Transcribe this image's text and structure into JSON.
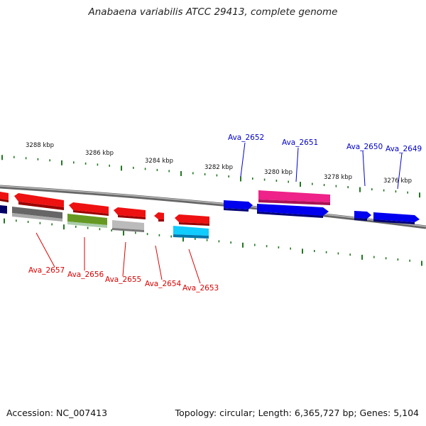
{
  "title": "Anabaena variabilis ATCC 29413, complete genome",
  "footer": {
    "accession": "Accession: NC_007413",
    "summary": "Topology: circular; Length: 6,365,727 bp; Genes: 5,104"
  },
  "scale_labels": [
    "3288 kbp",
    "3286 kbp",
    "3284 kbp",
    "3282 kbp",
    "3280 kbp",
    "3278 kbp",
    "3276 kbp"
  ],
  "genes_forward": [
    {
      "label": "Ava_2652",
      "color": "#0000ee"
    },
    {
      "label": "Ava_2651",
      "color": "#ee2288"
    },
    {
      "label": "Ava_2650",
      "color": "#0000ee"
    },
    {
      "label": "Ava_2649",
      "color": "#0000ee"
    }
  ],
  "genes_reverse": [
    {
      "label": "Ava_2657",
      "color": "#ee1111"
    },
    {
      "label": "Ava_2656",
      "color": "#669922"
    },
    {
      "label": "Ava_2655",
      "color": "#bbbbbb"
    },
    {
      "label": "Ava_2654",
      "color": "#ee1111"
    },
    {
      "label": "Ava_2653",
      "color": "#11ccff"
    }
  ],
  "colors": {
    "forward_label": "#0000cc",
    "reverse_label": "#dd0000",
    "tick": "#227722",
    "backbone": "#888888",
    "gene_red": "#ee1111",
    "gene_blue": "#0000ee",
    "gene_gray": "#666666",
    "gene_navy": "#000066"
  }
}
